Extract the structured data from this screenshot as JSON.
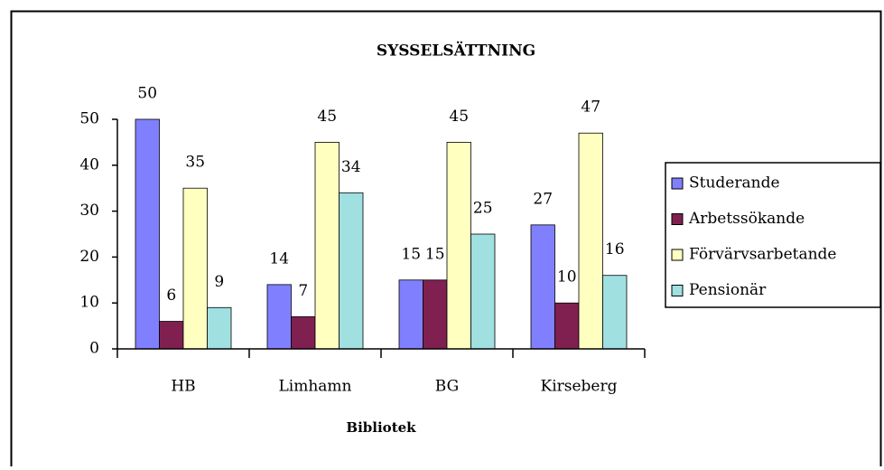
{
  "chart_data": {
    "type": "bar",
    "title": "SYSSELSÄTTNING",
    "x_label": "Bibliotek",
    "categories": [
      "HB",
      "Limhamn",
      "BG",
      "Kirseberg"
    ],
    "series": [
      {
        "name": "Studerande",
        "color": "#8080ff",
        "values": [
          50,
          14,
          15,
          27
        ]
      },
      {
        "name": "Arbetssökande",
        "color": "#802050",
        "values": [
          6,
          7,
          15,
          10
        ]
      },
      {
        "name": "Förvärvsarbetande",
        "color": "#ffffc0",
        "values": [
          35,
          45,
          45,
          47
        ]
      },
      {
        "name": "Pensionär",
        "color": "#a0e0e0",
        "values": [
          9,
          34,
          25,
          16
        ]
      }
    ],
    "ylim": [
      0,
      50
    ],
    "yticks": [
      0,
      10,
      20,
      30,
      40,
      50
    ],
    "legend": "right",
    "grid": false
  }
}
